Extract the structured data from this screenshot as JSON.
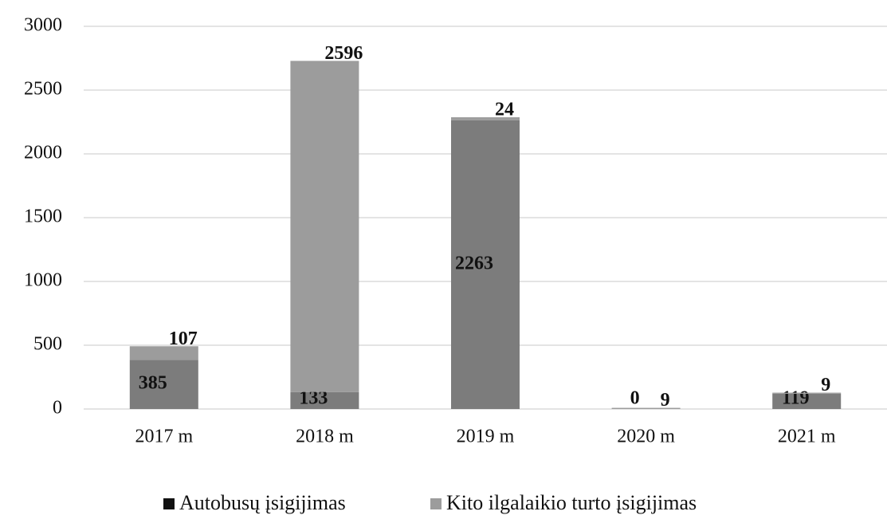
{
  "chart_data": {
    "type": "stacked_bar",
    "categories": [
      "2017 m",
      "2018 m",
      "2019 m",
      "2020 m",
      "2021 m"
    ],
    "series": [
      {
        "name": "Autobusų įsigijimas",
        "color": "#7c7c7c",
        "values": [
          385,
          133,
          2263,
          0,
          119
        ]
      },
      {
        "name": "Kito ilgalaikio turto įsigijimas",
        "color": "#9c9c9c",
        "values": [
          107,
          2596,
          24,
          9,
          9
        ]
      }
    ],
    "ylim": [
      0,
      3000
    ],
    "yticks": [
      0,
      500,
      1000,
      1500,
      2000,
      2500,
      3000
    ],
    "grid": true,
    "legend": "bottom"
  }
}
